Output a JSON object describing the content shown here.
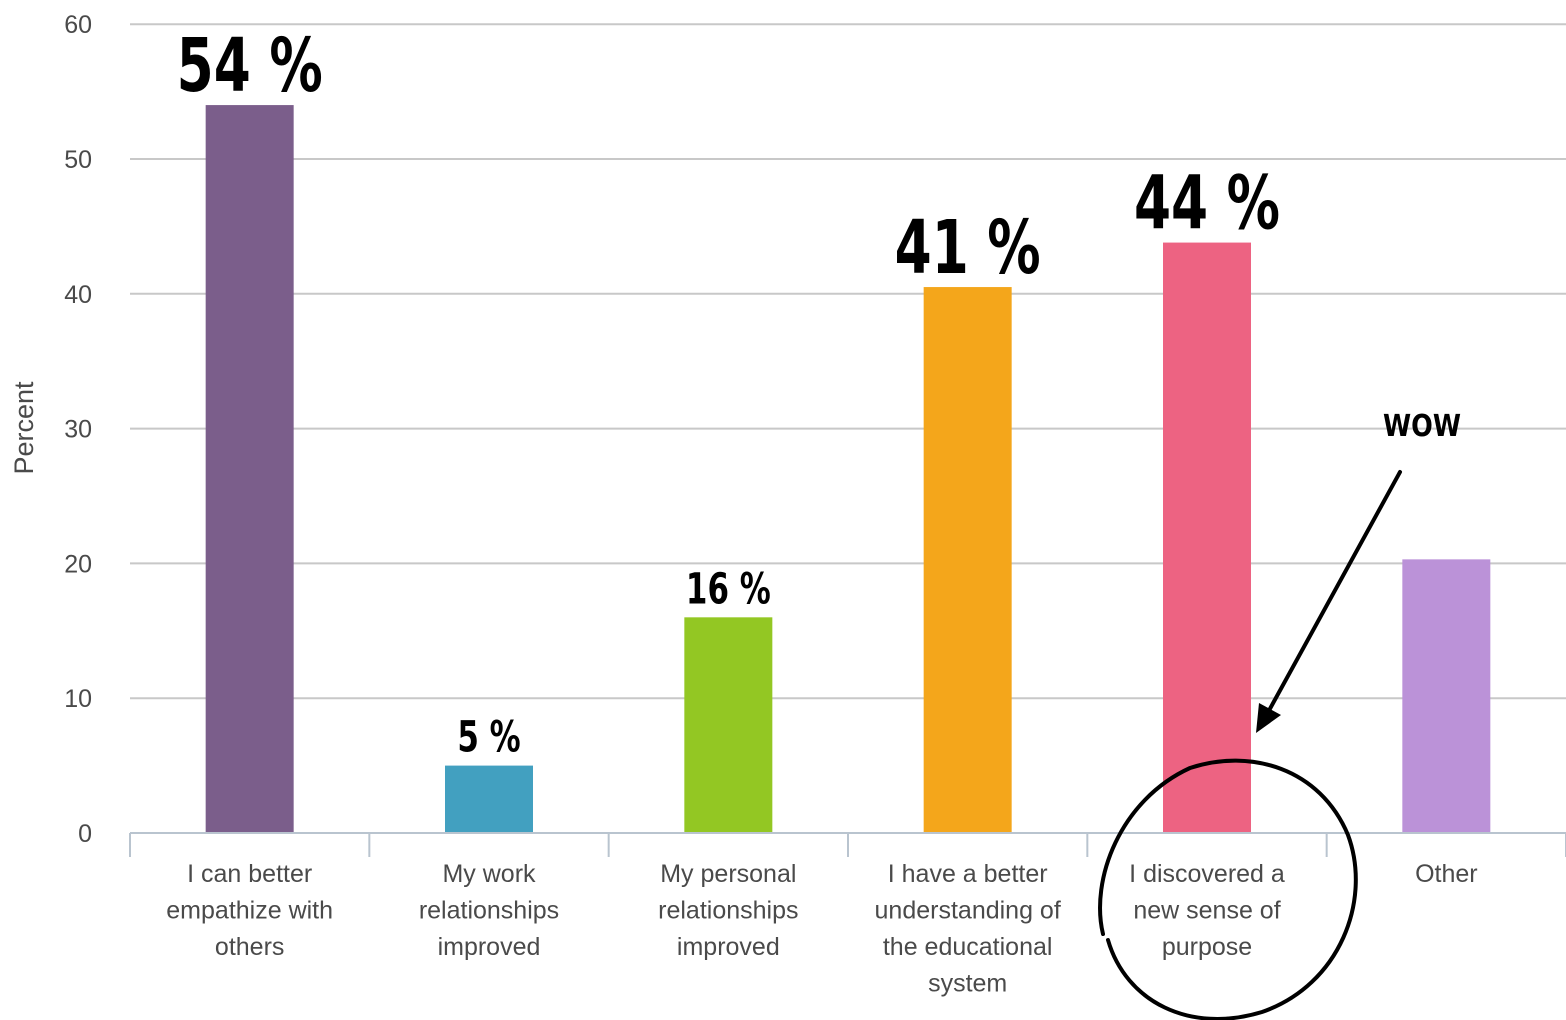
{
  "chart_data": {
    "type": "bar",
    "ylabel": "Percent",
    "ylim": [
      0,
      60
    ],
    "yticks": [
      0,
      10,
      20,
      30,
      40,
      50,
      60
    ],
    "grid": true,
    "categories": [
      [
        "I can better",
        "empathize with",
        "others"
      ],
      [
        "My work",
        "relationships",
        "improved"
      ],
      [
        "My personal",
        "relationships",
        "improved"
      ],
      [
        "I have a better",
        "understanding of",
        "the educational",
        "system"
      ],
      [
        "I discovered a",
        "new sense of",
        "purpose"
      ],
      [
        "Other"
      ]
    ],
    "values": [
      54,
      5,
      16,
      40.5,
      43.8,
      20.3
    ],
    "data_labels": [
      "54 %",
      "5 %",
      "16 %",
      "41 %",
      "44 %",
      ""
    ],
    "colors": [
      "#7b5e8b",
      "#42a0c0",
      "#93c723",
      "#f4a61b",
      "#ed6382",
      "#bb92d8"
    ],
    "annotation": {
      "text": "WOW",
      "target_category_index": 4,
      "style": "arrow-and-circle"
    }
  }
}
